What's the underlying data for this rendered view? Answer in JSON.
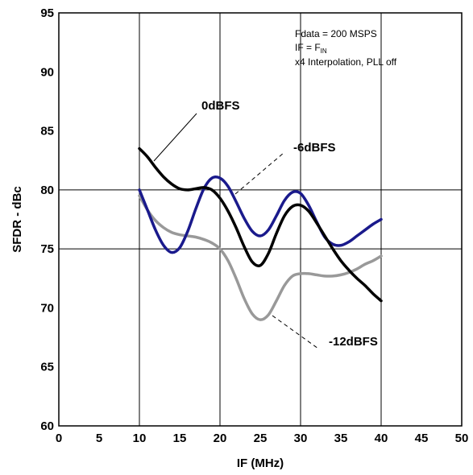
{
  "chart_data": {
    "type": "line",
    "title": "",
    "xlabel": "IF (MHz)",
    "ylabel": "SFDR - dBc",
    "xlim": [
      0,
      50
    ],
    "ylim": [
      60,
      95
    ],
    "x_ticks": [
      0,
      5,
      10,
      15,
      20,
      25,
      30,
      35,
      40,
      45,
      50
    ],
    "y_ticks": [
      60,
      65,
      70,
      75,
      80,
      85,
      90,
      95
    ],
    "grid_x": [
      10,
      20,
      30,
      40
    ],
    "grid_y": [
      75,
      80
    ],
    "conditions": {
      "line1": "Fdata = 200 MSPS",
      "line2_prefix": "IF = F",
      "line2_sub": "IN",
      "line3": "x4 Interpolation, PLL off"
    },
    "series": [
      {
        "name": "0dBFS",
        "color": "#000000",
        "x": [
          10,
          11,
          12,
          13,
          14,
          15,
          16,
          17,
          18,
          19,
          20,
          21,
          22,
          23,
          24,
          25,
          26,
          27,
          28,
          29,
          30,
          31,
          32,
          33,
          34,
          35,
          36,
          37,
          38,
          39,
          40
        ],
        "y": [
          83.5,
          82.8,
          81.9,
          81.1,
          80.5,
          80.1,
          80.0,
          80.1,
          80.2,
          80.0,
          79.3,
          78.2,
          76.8,
          75.2,
          73.9,
          73.6,
          74.6,
          76.3,
          77.8,
          78.6,
          78.7,
          78.2,
          77.2,
          76.1,
          75.0,
          74.0,
          73.2,
          72.5,
          71.9,
          71.2,
          70.6
        ]
      },
      {
        "name": "-6dBFS",
        "color": "#1a1a8c",
        "x": [
          10,
          11,
          12,
          13,
          14,
          15,
          16,
          17,
          18,
          19,
          20,
          21,
          22,
          23,
          24,
          25,
          26,
          27,
          28,
          29,
          30,
          31,
          32,
          33,
          34,
          35,
          36,
          37,
          38,
          39,
          40
        ],
        "y": [
          80.0,
          78.3,
          76.6,
          75.3,
          74.7,
          75.1,
          76.5,
          78.4,
          80.1,
          81.0,
          81.0,
          80.3,
          79.0,
          77.6,
          76.5,
          76.1,
          76.6,
          77.8,
          79.1,
          79.8,
          79.7,
          78.7,
          77.3,
          76.0,
          75.4,
          75.3,
          75.6,
          76.1,
          76.6,
          77.1,
          77.5
        ]
      },
      {
        "name": "-12dBFS",
        "color": "#999999",
        "x": [
          10,
          11,
          12,
          13,
          14,
          15,
          16,
          17,
          18,
          19,
          20,
          21,
          22,
          23,
          24,
          25,
          26,
          27,
          28,
          29,
          30,
          31,
          32,
          33,
          34,
          35,
          36,
          37,
          38,
          39,
          40
        ],
        "y": [
          79.5,
          78.3,
          77.4,
          76.8,
          76.4,
          76.2,
          76.1,
          76.0,
          75.8,
          75.5,
          75.0,
          74.0,
          72.5,
          70.8,
          69.5,
          69.0,
          69.4,
          70.6,
          71.9,
          72.7,
          72.9,
          72.9,
          72.8,
          72.7,
          72.7,
          72.8,
          73.0,
          73.3,
          73.7,
          74.0,
          74.4
        ]
      }
    ],
    "annotations": [
      {
        "text": "0dBFS",
        "series": "0dBFS"
      },
      {
        "text": "-6dBFS",
        "series": "-6dBFS"
      },
      {
        "text": "-12dBFS",
        "series": "-12dBFS"
      }
    ],
    "legend": "none"
  }
}
